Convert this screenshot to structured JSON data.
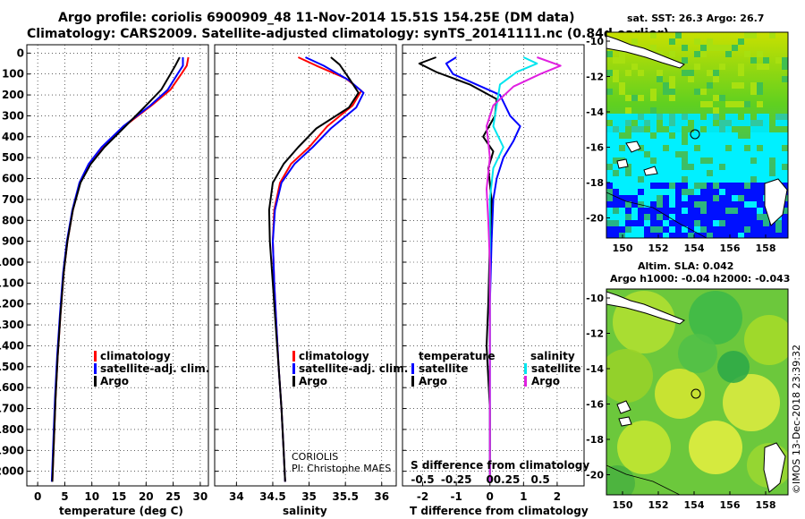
{
  "title": {
    "line1": "Argo profile: coriolis 6900909_48 11-Nov-2014 15.51S 154.25E (DM data)",
    "line2": "Climatology: CARS2009. Satellite-adjusted climatology: synTS_20141111.nc (0.84d earlier)"
  },
  "colors": {
    "climatology": "#ff0000",
    "satellite": "#0000ff",
    "argo": "#000000",
    "sat_salinity": "#00e5ee",
    "argo_salinity": "#e020e0"
  },
  "depth_ticks": [
    "0",
    "100",
    "200",
    "300",
    "400",
    "500",
    "600",
    "700",
    "800",
    "900",
    "1000",
    "1100",
    "1200",
    "1300",
    "1400",
    "1500",
    "1600",
    "1700",
    "1800",
    "1900",
    "2000"
  ],
  "chart_data": [
    {
      "type": "line",
      "title": "",
      "xlabel": "temperature (deg C)",
      "ylabel": "depth",
      "xlim": [
        -2,
        31.5
      ],
      "ylim": [
        2070,
        -40
      ],
      "xticks": [
        "0",
        "5",
        "10",
        "15",
        "20",
        "25",
        "30"
      ],
      "legend": [
        "climatology",
        "satellite-adj. clim.",
        "Argo"
      ],
      "series": [
        {
          "name": "climatology",
          "points": [
            [
              27.8,
              20
            ],
            [
              27.5,
              60
            ],
            [
              26.5,
              100
            ],
            [
              24.5,
              175
            ],
            [
              21,
              250
            ],
            [
              16,
              350
            ],
            [
              12,
              450
            ],
            [
              9.5,
              530
            ],
            [
              7.8,
              620
            ],
            [
              6.5,
              750
            ],
            [
              5.5,
              900
            ],
            [
              4.8,
              1050
            ],
            [
              4.2,
              1250
            ],
            [
              3.7,
              1450
            ],
            [
              3.3,
              1650
            ],
            [
              3.0,
              1850
            ],
            [
              2.7,
              2050
            ]
          ]
        },
        {
          "name": "satellite-adj. clim.",
          "points": [
            [
              26.8,
              20
            ],
            [
              26.8,
              60
            ],
            [
              25.8,
              100
            ],
            [
              24,
              175
            ],
            [
              20.8,
              250
            ],
            [
              15.8,
              350
            ],
            [
              11.8,
              450
            ],
            [
              9.4,
              530
            ],
            [
              7.7,
              620
            ],
            [
              6.4,
              750
            ],
            [
              5.4,
              900
            ],
            [
              4.7,
              1050
            ],
            [
              4.1,
              1250
            ],
            [
              3.6,
              1450
            ],
            [
              3.2,
              1650
            ],
            [
              2.9,
              1850
            ],
            [
              2.6,
              2050
            ]
          ]
        },
        {
          "name": "Argo",
          "points": [
            [
              26.2,
              20
            ],
            [
              25.5,
              55
            ],
            [
              24.5,
              100
            ],
            [
              22.8,
              175
            ],
            [
              20,
              250
            ],
            [
              16.2,
              350
            ],
            [
              12.3,
              450
            ],
            [
              9.8,
              530
            ],
            [
              7.9,
              620
            ],
            [
              6.5,
              750
            ],
            [
              5.5,
              900
            ],
            [
              4.8,
              1050
            ],
            [
              4.2,
              1250
            ],
            [
              3.7,
              1450
            ],
            [
              3.3,
              1650
            ],
            [
              3.0,
              1850
            ],
            [
              2.7,
              2050
            ]
          ]
        }
      ]
    },
    {
      "type": "line",
      "title": "",
      "xlabel": "salinity",
      "ylabel": "depth",
      "xlim": [
        33.7,
        36.2
      ],
      "ylim": [
        2070,
        -40
      ],
      "xticks": [
        "34",
        "34.5",
        "35",
        "35.5",
        "36"
      ],
      "legend": [
        "climatology",
        "satellite-adj. clim.",
        "Argo"
      ],
      "annotation": [
        "CORIOLIS",
        "PI: Christophe MAES"
      ],
      "series": [
        {
          "name": "climatology",
          "points": [
            [
              34.85,
              20
            ],
            [
              35.1,
              60
            ],
            [
              35.5,
              120
            ],
            [
              35.72,
              180
            ],
            [
              35.6,
              250
            ],
            [
              35.25,
              350
            ],
            [
              35.0,
              450
            ],
            [
              34.75,
              530
            ],
            [
              34.6,
              620
            ],
            [
              34.52,
              750
            ],
            [
              34.5,
              900
            ],
            [
              34.52,
              1100
            ],
            [
              34.55,
              1300
            ],
            [
              34.58,
              1500
            ],
            [
              34.62,
              1700
            ],
            [
              34.65,
              1900
            ],
            [
              34.67,
              2050
            ]
          ]
        },
        {
          "name": "satellite-adj. clim.",
          "points": [
            [
              34.95,
              20
            ],
            [
              35.2,
              60
            ],
            [
              35.55,
              130
            ],
            [
              35.75,
              190
            ],
            [
              35.65,
              260
            ],
            [
              35.3,
              360
            ],
            [
              35.05,
              450
            ],
            [
              34.8,
              530
            ],
            [
              34.62,
              620
            ],
            [
              34.53,
              750
            ],
            [
              34.5,
              900
            ],
            [
              34.52,
              1100
            ],
            [
              34.55,
              1300
            ],
            [
              34.58,
              1500
            ],
            [
              34.62,
              1700
            ],
            [
              34.65,
              1900
            ],
            [
              34.67,
              2050
            ]
          ]
        },
        {
          "name": "Argo",
          "points": [
            [
              35.3,
              20
            ],
            [
              35.42,
              55
            ],
            [
              35.55,
              120
            ],
            [
              35.68,
              190
            ],
            [
              35.55,
              260
            ],
            [
              35.1,
              360
            ],
            [
              34.85,
              450
            ],
            [
              34.65,
              530
            ],
            [
              34.5,
              620
            ],
            [
              34.45,
              750
            ],
            [
              34.46,
              900
            ],
            [
              34.5,
              1100
            ],
            [
              34.54,
              1300
            ],
            [
              34.58,
              1500
            ],
            [
              34.62,
              1700
            ],
            [
              34.65,
              1900
            ],
            [
              34.67,
              2050
            ]
          ]
        }
      ]
    },
    {
      "type": "line",
      "title": "S difference from climatology",
      "xlabel": "T difference from climatology",
      "ylabel": "depth",
      "xlim": [
        -2.6,
        2.8
      ],
      "ylim": [
        2070,
        -40
      ],
      "xticks": [
        "-2",
        "-1",
        "0",
        "1",
        "2"
      ],
      "s_ticks": [
        "-0.5",
        "-0.25",
        "0",
        "0.25",
        "0.5"
      ],
      "legend_left": {
        "header": "temperature",
        "items": [
          "satellite",
          "Argo"
        ]
      },
      "legend_right": {
        "header": "salinity",
        "items": [
          "satellite",
          "Argo"
        ]
      },
      "series": [
        {
          "name": "temperature satellite",
          "points": [
            [
              -1.0,
              20
            ],
            [
              -1.3,
              50
            ],
            [
              -1.1,
              100
            ],
            [
              -0.4,
              150
            ],
            [
              0.3,
              200
            ],
            [
              0.6,
              300
            ],
            [
              0.9,
              350
            ],
            [
              0.7,
              420
            ],
            [
              0.4,
              500
            ],
            [
              0.2,
              600
            ],
            [
              0.1,
              700
            ],
            [
              0.05,
              900
            ],
            [
              0.0,
              1200
            ],
            [
              0.0,
              1600
            ],
            [
              0.0,
              2050
            ]
          ]
        },
        {
          "name": "temperature Argo",
          "points": [
            [
              -1.6,
              20
            ],
            [
              -2.1,
              50
            ],
            [
              -1.6,
              90
            ],
            [
              -0.6,
              150
            ],
            [
              0.2,
              220
            ],
            [
              0.15,
              300
            ],
            [
              -0.2,
              400
            ],
            [
              0.1,
              470
            ],
            [
              -0.05,
              550
            ],
            [
              0.05,
              700
            ],
            [
              0.0,
              900
            ],
            [
              -0.05,
              1200
            ],
            [
              -0.1,
              1400
            ],
            [
              0.0,
              1700
            ],
            [
              0.0,
              2050
            ]
          ]
        },
        {
          "name": "salinity satellite",
          "points": [
            [
              1.0,
              20
            ],
            [
              1.4,
              50
            ],
            [
              0.8,
              90
            ],
            [
              0.3,
              150
            ],
            [
              0.2,
              250
            ],
            [
              0.1,
              350
            ],
            [
              0.4,
              450
            ],
            [
              0.1,
              550
            ],
            [
              0.0,
              700
            ],
            [
              0.0,
              1000
            ],
            [
              0.0,
              1600
            ],
            [
              0.0,
              2050
            ]
          ]
        },
        {
          "name": "salinity Argo",
          "points": [
            [
              1.4,
              20
            ],
            [
              2.1,
              60
            ],
            [
              1.5,
              100
            ],
            [
              0.7,
              160
            ],
            [
              0.1,
              250
            ],
            [
              -0.1,
              350
            ],
            [
              0.0,
              500
            ],
            [
              -0.1,
              650
            ],
            [
              -0.05,
              800
            ],
            [
              0.0,
              1000
            ],
            [
              0.0,
              1500
            ],
            [
              0.0,
              2050
            ]
          ]
        }
      ]
    },
    {
      "type": "heatmap",
      "title": "sat. SST: 26.3 Argo: 26.7",
      "xticks": [
        "150",
        "152",
        "154",
        "156",
        "158"
      ],
      "yticks": [
        "-10",
        "-12",
        "-14",
        "-16",
        "-18",
        "-20"
      ]
    },
    {
      "type": "heatmap",
      "title_line1": "Altim. SLA: 0.042",
      "title_line2": "Argo h1000: -0.04 h2000: -0.043",
      "xticks": [
        "150",
        "152",
        "154",
        "156",
        "158"
      ],
      "yticks": [
        "-10",
        "-12",
        "-14",
        "-16",
        "-18",
        "-20"
      ]
    }
  ],
  "credit": "©IMOS 13-Dec-2018 23:39:32"
}
